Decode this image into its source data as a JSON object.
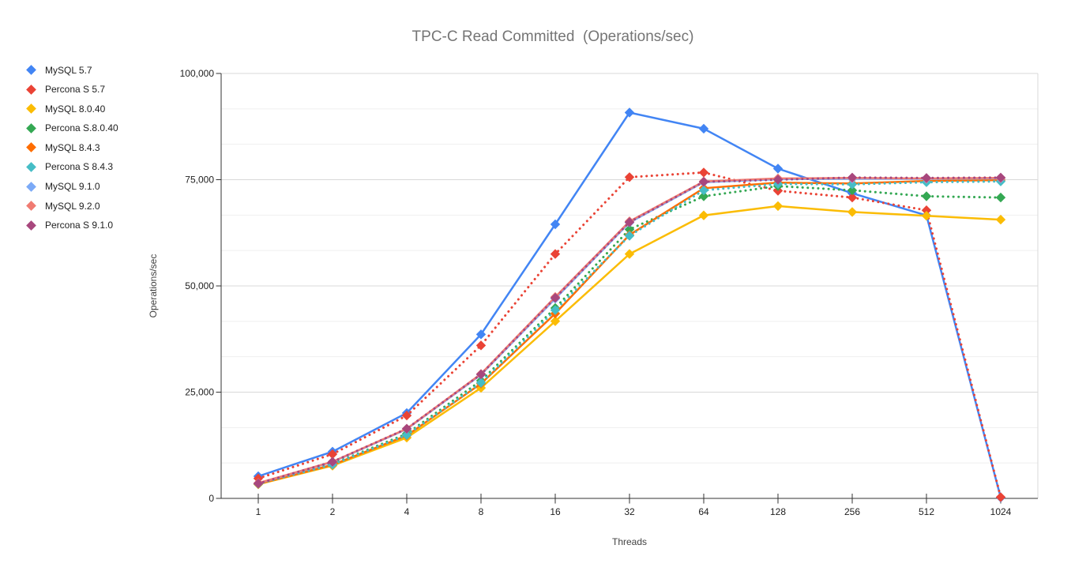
{
  "chart_data": {
    "type": "line",
    "title": "TPC-C Read Committed  (Operations/sec)",
    "xlabel": "Threads",
    "ylabel": "Operations/sec",
    "categories": [
      "1",
      "2",
      "4",
      "8",
      "16",
      "32",
      "64",
      "128",
      "256",
      "512",
      "1024"
    ],
    "ylim": [
      0,
      100000
    ],
    "y_ticks": [
      {
        "value": 0,
        "label": "0"
      },
      {
        "value": 25000,
        "label": "25,000"
      },
      {
        "value": 50000,
        "label": "50,000"
      },
      {
        "value": 75000,
        "label": "75,000"
      },
      {
        "value": 100000,
        "label": "100,000"
      }
    ],
    "minor_gridline_step": 8333,
    "grid": true,
    "legend_position": "top-left",
    "marker": "diamond",
    "series": [
      {
        "name": "MySQL 5.7",
        "color": "#4285F4",
        "line_style": "solid",
        "values": [
          5200,
          11000,
          20100,
          38600,
          64500,
          90800,
          87000,
          77600,
          71800,
          66600,
          200
        ]
      },
      {
        "name": "Percona S 5.7",
        "color": "#EA4335",
        "line_style": "dotted",
        "values": [
          4700,
          10400,
          19500,
          36000,
          57500,
          75600,
          76700,
          72400,
          70800,
          67800,
          300
        ]
      },
      {
        "name": "MySQL 8.0.40",
        "color": "#FBBC04",
        "line_style": "solid",
        "values": [
          3300,
          7700,
          14300,
          26000,
          41700,
          57500,
          66600,
          68800,
          67400,
          66500,
          65600
        ]
      },
      {
        "name": "Percona S.8.0.40",
        "color": "#34A853",
        "line_style": "dotted",
        "values": [
          3400,
          8100,
          15200,
          27700,
          44800,
          63300,
          71100,
          73500,
          72500,
          71100,
          70800
        ]
      },
      {
        "name": "MySQL 8.4.3",
        "color": "#FF6D01",
        "line_style": "solid",
        "values": [
          3400,
          7900,
          14800,
          27000,
          43500,
          62000,
          73000,
          74300,
          74100,
          74700,
          74900
        ]
      },
      {
        "name": "Percona S 8.4.3",
        "color": "#46BDC6",
        "line_style": "dotted",
        "values": [
          3450,
          7950,
          14900,
          27200,
          44300,
          61800,
          72500,
          74000,
          73900,
          74400,
          74600
        ]
      },
      {
        "name": "MySQL 9.1.0",
        "color": "#7BAAF7",
        "line_style": "solid",
        "values": [
          3550,
          8550,
          16300,
          29100,
          47000,
          64900,
          74400,
          75100,
          75200,
          75200,
          75300
        ]
      },
      {
        "name": "MySQL 9.2.0",
        "color": "#F07B72",
        "line_style": "solid",
        "values": [
          3600,
          8650,
          16400,
          29300,
          47400,
          65200,
          74600,
          75300,
          75400,
          75300,
          75400
        ]
      },
      {
        "name": "Percona S 9.1.0",
        "color": "#A8477D",
        "line_style": "dotted",
        "values": [
          3500,
          8600,
          16400,
          29200,
          47200,
          65000,
          74500,
          75000,
          75500,
          75400,
          75500
        ]
      }
    ]
  },
  "style": {
    "axis_color": "#333333",
    "major_grid_color": "#d9d9d9",
    "minor_grid_color": "#efefef",
    "tick_label_color": "#212121",
    "title_color": "#757575"
  }
}
